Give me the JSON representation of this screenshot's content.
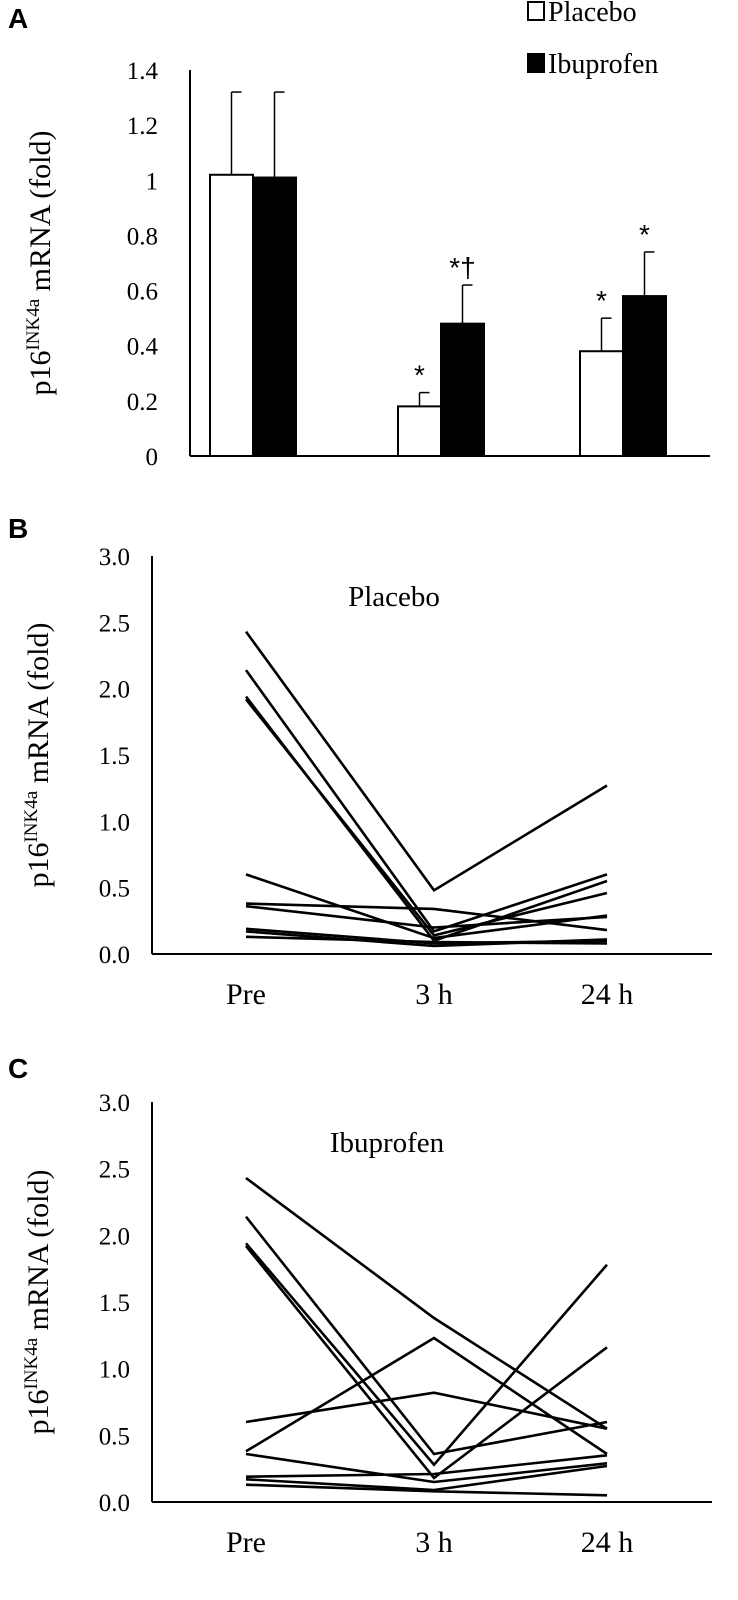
{
  "panels": {
    "a": "A",
    "b": "B",
    "c": "C"
  },
  "chart_data": [
    {
      "panel": "A",
      "type": "bar",
      "categories": [
        "",
        "",
        ""
      ],
      "ylabel_main": "p16",
      "ylabel_sup": "INK4a",
      "ylabel_rest": " mRNA (fold)",
      "ylim": [
        0,
        1.4
      ],
      "yticks": [
        "0",
        "0.2",
        "0.4",
        "0.6",
        "0.8",
        "1",
        "1.2",
        "1.4"
      ],
      "legend_position": "top-right",
      "series": [
        {
          "name": "Placebo",
          "fill": "#ffffff",
          "values": [
            1.02,
            0.18,
            0.38
          ],
          "errors": [
            0.3,
            0.05,
            0.12
          ],
          "marks": [
            "",
            "*",
            "*"
          ]
        },
        {
          "name": "Ibuprofen",
          "fill": "#000000",
          "values": [
            1.01,
            0.48,
            0.58
          ],
          "errors": [
            0.31,
            0.14,
            0.16
          ],
          "marks": [
            "",
            "*†",
            "*"
          ]
        }
      ]
    },
    {
      "panel": "B",
      "type": "line",
      "title": "Placebo",
      "categories": [
        "Pre",
        "3 h",
        "24 h"
      ],
      "ylabel_main": "p16",
      "ylabel_sup": "INK4a",
      "ylabel_rest": " mRNA (fold)",
      "ylim": [
        0,
        3.0
      ],
      "yticks": [
        "0.0",
        "0.5",
        "1.0",
        "1.5",
        "2.0",
        "2.5",
        "3.0"
      ],
      "series": [
        {
          "values": [
            2.43,
            0.48,
            1.27
          ]
        },
        {
          "values": [
            2.14,
            0.17,
            0.6
          ]
        },
        {
          "values": [
            1.94,
            0.1,
            0.55
          ]
        },
        {
          "values": [
            1.92,
            0.14,
            0.46
          ]
        },
        {
          "values": [
            0.6,
            0.12,
            0.29
          ]
        },
        {
          "values": [
            0.38,
            0.34,
            0.18
          ]
        },
        {
          "values": [
            0.36,
            0.2,
            0.28
          ]
        },
        {
          "values": [
            0.19,
            0.08,
            0.1
          ]
        },
        {
          "values": [
            0.17,
            0.06,
            0.11
          ]
        },
        {
          "values": [
            0.13,
            0.09,
            0.08
          ]
        }
      ]
    },
    {
      "panel": "C",
      "type": "line",
      "title": "Ibuprofen",
      "categories": [
        "Pre",
        "3 h",
        "24 h"
      ],
      "ylabel_main": "p16",
      "ylabel_sup": "INK4a",
      "ylabel_rest": " mRNA (fold)",
      "ylim": [
        0,
        3.0
      ],
      "yticks": [
        "0.0",
        "0.5",
        "1.0",
        "1.5",
        "2.0",
        "2.5",
        "3.0"
      ],
      "series": [
        {
          "values": [
            2.43,
            1.38,
            0.55
          ]
        },
        {
          "values": [
            2.14,
            0.36,
            0.6
          ]
        },
        {
          "values": [
            1.94,
            0.28,
            1.78
          ]
        },
        {
          "values": [
            1.92,
            0.18,
            1.16
          ]
        },
        {
          "values": [
            0.6,
            0.82,
            0.55
          ]
        },
        {
          "values": [
            0.38,
            1.23,
            0.36
          ]
        },
        {
          "values": [
            0.36,
            0.15,
            0.29
          ]
        },
        {
          "values": [
            0.19,
            0.21,
            0.35
          ]
        },
        {
          "values": [
            0.17,
            0.09,
            0.27
          ]
        },
        {
          "values": [
            0.13,
            0.08,
            0.05
          ]
        }
      ]
    }
  ]
}
